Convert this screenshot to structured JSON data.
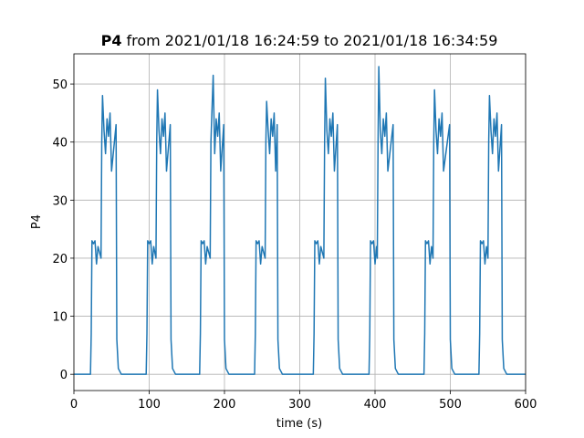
{
  "chart_data": {
    "type": "line",
    "title_parts": [
      "P4",
      "from 2021/01/18 16:24:59 to 2021/01/18 16:34:59"
    ],
    "xlabel": "time (s)",
    "ylabel": "P4",
    "x": [
      0,
      22,
      23,
      24,
      26,
      28,
      30,
      32,
      36,
      37,
      38,
      40,
      42,
      44,
      46,
      48,
      50,
      56,
      57,
      59,
      63,
      96,
      97,
      98,
      100,
      102,
      104,
      106,
      109,
      110,
      111,
      113,
      115,
      117,
      119,
      121,
      123,
      128,
      129,
      131,
      135,
      167,
      168,
      169,
      171,
      173,
      175,
      177,
      181,
      182,
      183,
      185,
      187,
      189,
      191,
      193,
      195,
      199,
      200,
      202,
      206,
      240,
      241,
      242,
      244,
      246,
      248,
      250,
      254,
      255,
      256,
      258,
      260,
      262,
      264,
      266,
      268,
      270,
      271,
      273,
      277,
      318,
      319,
      320,
      322,
      324,
      326,
      328,
      332,
      333,
      334,
      336,
      338,
      340,
      342,
      344,
      346,
      350,
      351,
      353,
      357,
      392,
      393,
      394,
      396,
      398,
      400,
      402,
      403,
      404,
      405,
      407,
      409,
      411,
      413,
      415,
      417,
      424,
      425,
      427,
      431,
      465,
      466,
      467,
      469,
      471,
      473,
      475,
      477,
      478,
      479,
      481,
      483,
      485,
      487,
      489,
      491,
      499,
      500,
      502,
      506,
      538,
      539,
      540,
      542,
      544,
      546,
      548,
      550,
      551,
      552,
      554,
      556,
      558,
      560,
      562,
      564,
      568,
      569,
      571,
      575,
      600
    ],
    "values": [
      0,
      0,
      7,
      23,
      22.5,
      23,
      19,
      22,
      20,
      40,
      48,
      42,
      38,
      44,
      41,
      45,
      35,
      43,
      6,
      1,
      0,
      0,
      7,
      23,
      22.5,
      23,
      19,
      22,
      20,
      40,
      49,
      42,
      38,
      44,
      41,
      45,
      35,
      43,
      6,
      1,
      0,
      0,
      7,
      23,
      22.5,
      23,
      19,
      22,
      20,
      40,
      44,
      51.5,
      38,
      44,
      41,
      45,
      35,
      43,
      6,
      1,
      0,
      0,
      7,
      23,
      22.5,
      23,
      19,
      22,
      20,
      40,
      47,
      42,
      38,
      44,
      41,
      45,
      35,
      43,
      6,
      1,
      0,
      0,
      7,
      23,
      22.5,
      23,
      19,
      22,
      20,
      40,
      51,
      42,
      38,
      44,
      41,
      45,
      35,
      43,
      6,
      1,
      0,
      0,
      7,
      23,
      22.5,
      23,
      19,
      22,
      20,
      40,
      53,
      42,
      38,
      44,
      41,
      45,
      35,
      43,
      6,
      1,
      0,
      0,
      7,
      23,
      22.5,
      23,
      19,
      22,
      20,
      40,
      49,
      42,
      38,
      44,
      41,
      45,
      35,
      43,
      6,
      1,
      0,
      0,
      7,
      23,
      22.5,
      23,
      19,
      22,
      20,
      40,
      48,
      42,
      38,
      44,
      41,
      45,
      35,
      43,
      6,
      1,
      0,
      0
    ],
    "color": "#1f77b4",
    "xlim": [
      0,
      600
    ],
    "xticks": [
      0,
      100,
      200,
      300,
      400,
      500,
      600
    ],
    "ylim": [
      -2.8,
      55.2
    ],
    "yticks": [
      0,
      10,
      20,
      30,
      40,
      50
    ],
    "grid": true
  }
}
